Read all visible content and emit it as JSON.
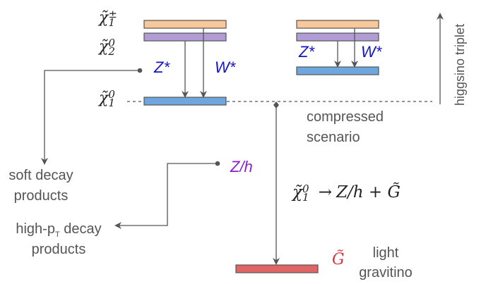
{
  "particles": {
    "chargino": "χ̃",
    "chargino_sup": "±",
    "chargino_sub": "1",
    "neutralino2": "χ̃",
    "neutralino2_sup": "0",
    "neutralino2_sub": "2",
    "neutralino1": "χ̃",
    "neutralino1_sup": "0",
    "neutralino1_sub": "1",
    "gravitino": "G̃"
  },
  "labels": {
    "z_star_left": "Z*",
    "w_star_left": "W*",
    "z_star_right": "Z*",
    "w_star_right": "W*",
    "z_h": "Z/h",
    "compressed_line1": "compressed",
    "compressed_line2": "scenario",
    "soft_line1": "soft decay",
    "soft_line2": "products",
    "highpt_prefix": "high-p",
    "highpt_sub": "T",
    "highpt_suffix": " decay",
    "highpt_line2": "products",
    "light_line1": "light",
    "light_line2": "gravitino",
    "higgsino_triplet": "higgsino triplet"
  },
  "decay": {
    "lhs_symbol": "χ̃",
    "lhs_sup": "0",
    "lhs_sub": "1",
    "arrow": "→",
    "rhs": "Z/h + G̃"
  },
  "colors": {
    "orange_level": "#f8c89a",
    "purple_level": "#b19cd6",
    "blue_level": "#6fa6de",
    "red_level": "#e06666",
    "line": "#555555"
  }
}
